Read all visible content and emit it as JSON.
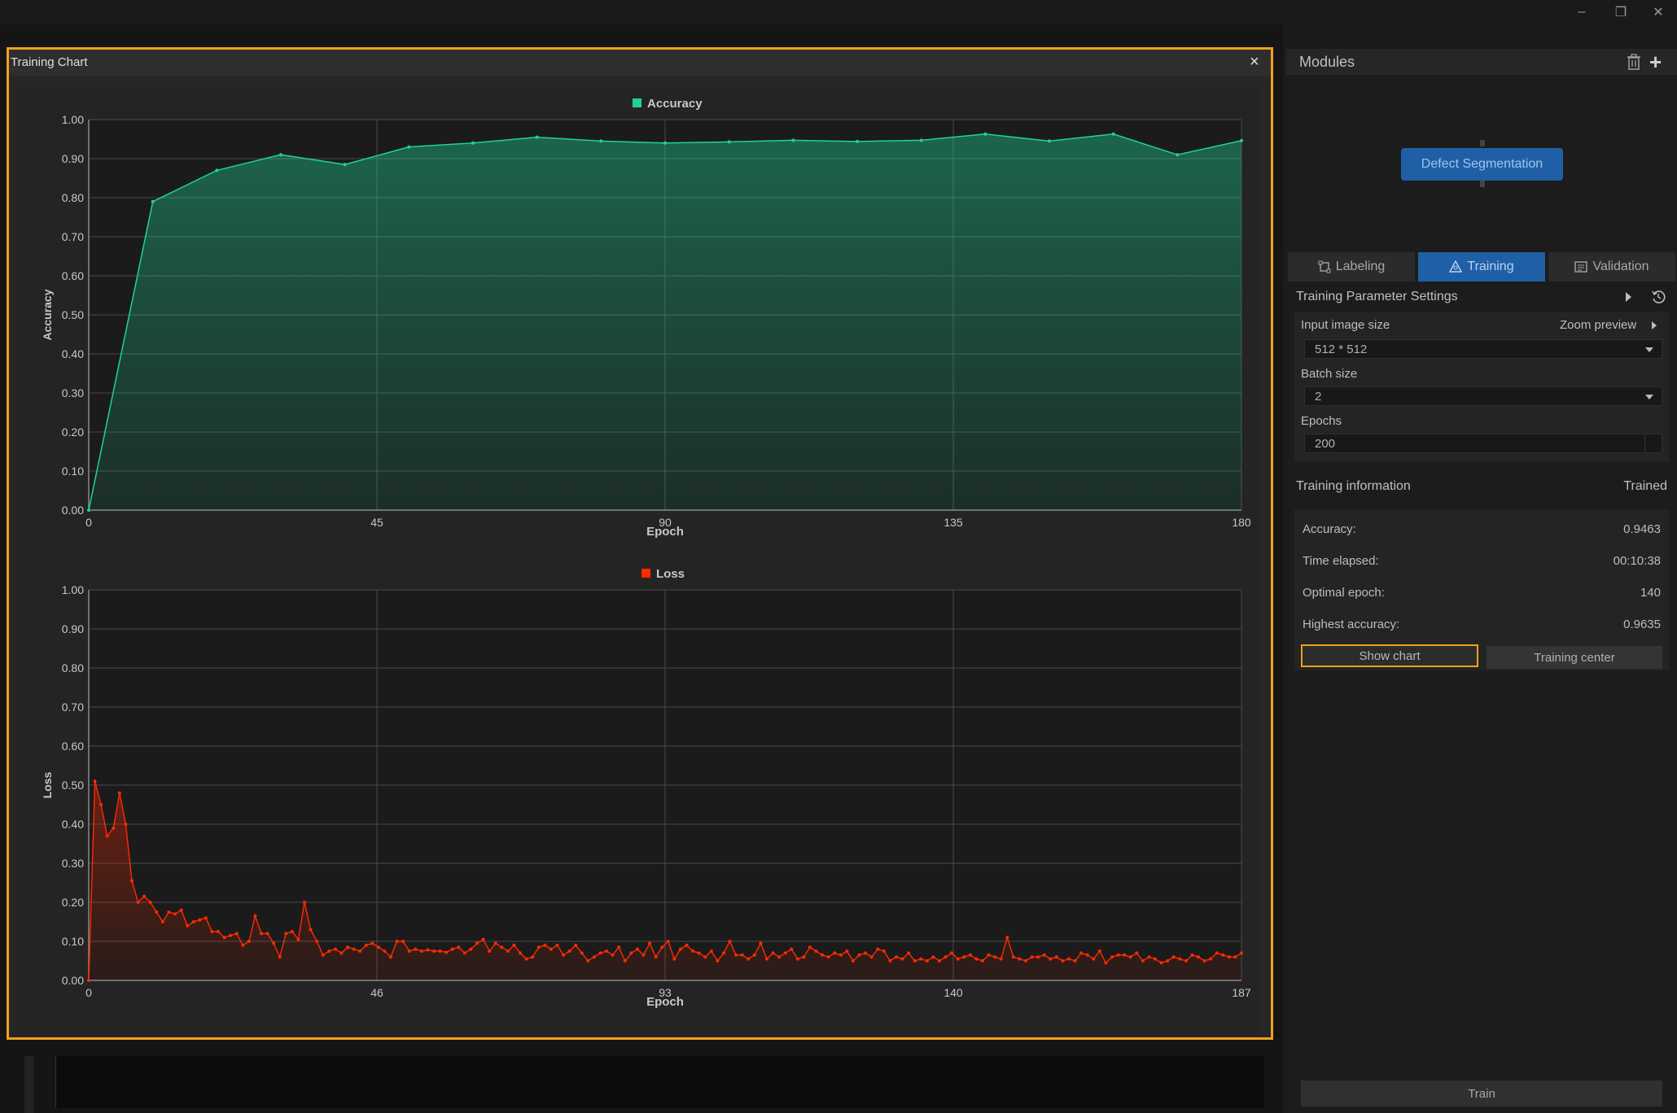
{
  "window": {
    "minimize_label": "–",
    "restore_label": "❐",
    "close_label": "✕"
  },
  "dialog": {
    "title": "Training Chart",
    "close_label": "×"
  },
  "colors": {
    "accent": "#f0a020",
    "accuracy": "#1fd396",
    "loss": "#ff2a00",
    "active_tab": "#1f5fa6"
  },
  "chart_data": [
    {
      "type": "area",
      "series_name": "Accuracy",
      "ylabel": "Accuracy",
      "xlabel": "Epoch",
      "xlim": [
        0,
        180
      ],
      "ylim": [
        0,
        1
      ],
      "xticks": [
        "0",
        "45",
        "90",
        "135",
        "180"
      ],
      "yticks": [
        "0.00",
        "0.10",
        "0.20",
        "0.30",
        "0.40",
        "0.50",
        "0.60",
        "0.70",
        "0.80",
        "0.90",
        "1.00"
      ],
      "grid": true,
      "legend": "top-center",
      "x": [
        0,
        10,
        20,
        30,
        40,
        50,
        60,
        70,
        80,
        90,
        100,
        110,
        120,
        130,
        140,
        150,
        160,
        170,
        180
      ],
      "values": [
        0.0,
        0.79,
        0.87,
        0.91,
        0.885,
        0.93,
        0.94,
        0.955,
        0.945,
        0.94,
        0.943,
        0.947,
        0.944,
        0.947,
        0.963,
        0.945,
        0.963,
        0.91,
        0.946
      ]
    },
    {
      "type": "area",
      "series_name": "Loss",
      "ylabel": "Loss",
      "xlabel": "Epoch",
      "xlim": [
        0,
        187
      ],
      "ylim": [
        0,
        1
      ],
      "xticks": [
        "0",
        "46",
        "93",
        "140",
        "187"
      ],
      "yticks": [
        "0.00",
        "0.10",
        "0.20",
        "0.30",
        "0.40",
        "0.50",
        "0.60",
        "0.70",
        "0.80",
        "0.90",
        "1.00"
      ],
      "grid": true,
      "legend": "top-center",
      "x": [
        0,
        1,
        2,
        3,
        4,
        5,
        6,
        7,
        8,
        9,
        10,
        11,
        12,
        13,
        14,
        15,
        16,
        17,
        18,
        19,
        20,
        21,
        22,
        23,
        24,
        25,
        26,
        27,
        28,
        29,
        30,
        31,
        32,
        33,
        34,
        35,
        36,
        37,
        38,
        39,
        40,
        41,
        42,
        43,
        44,
        45,
        46,
        47,
        48,
        49,
        50,
        51,
        52,
        53,
        54,
        55,
        56,
        57,
        58,
        59,
        60,
        61,
        62,
        63,
        64,
        65,
        66,
        67,
        68,
        69,
        70,
        71,
        72,
        73,
        74,
        75,
        76,
        77,
        78,
        79,
        80,
        81,
        82,
        83,
        84,
        85,
        86,
        87,
        88,
        89,
        90,
        91,
        92,
        93,
        94,
        95,
        96,
        97,
        98,
        99,
        100,
        101,
        102,
        103,
        104,
        105,
        106,
        107,
        108,
        109,
        110,
        111,
        112,
        113,
        114,
        115,
        116,
        117,
        118,
        119,
        120,
        121,
        122,
        123,
        124,
        125,
        126,
        127,
        128,
        129,
        130,
        131,
        132,
        133,
        134,
        135,
        136,
        137,
        138,
        139,
        140,
        141,
        142,
        143,
        144,
        145,
        146,
        147,
        148,
        149,
        150,
        151,
        152,
        153,
        154,
        155,
        156,
        157,
        158,
        159,
        160,
        161,
        162,
        163,
        164,
        165,
        166,
        167,
        168,
        169,
        170,
        171,
        172,
        173,
        174,
        175,
        176,
        177,
        178,
        179,
        180,
        181,
        182,
        183,
        184,
        185,
        186,
        187
      ],
      "values": [
        0.0,
        0.51,
        0.45,
        0.37,
        0.39,
        0.48,
        0.4,
        0.255,
        0.2,
        0.215,
        0.2,
        0.175,
        0.15,
        0.175,
        0.17,
        0.18,
        0.14,
        0.15,
        0.155,
        0.16,
        0.125,
        0.125,
        0.11,
        0.115,
        0.12,
        0.09,
        0.1,
        0.165,
        0.12,
        0.12,
        0.095,
        0.06,
        0.12,
        0.125,
        0.105,
        0.2,
        0.13,
        0.1,
        0.065,
        0.075,
        0.08,
        0.07,
        0.085,
        0.08,
        0.075,
        0.09,
        0.095,
        0.085,
        0.075,
        0.06,
        0.1,
        0.1,
        0.075,
        0.08,
        0.075,
        0.078,
        0.075,
        0.075,
        0.072,
        0.08,
        0.085,
        0.07,
        0.08,
        0.095,
        0.105,
        0.075,
        0.095,
        0.085,
        0.075,
        0.09,
        0.07,
        0.055,
        0.06,
        0.085,
        0.09,
        0.08,
        0.09,
        0.065,
        0.075,
        0.09,
        0.07,
        0.05,
        0.06,
        0.07,
        0.075,
        0.065,
        0.085,
        0.05,
        0.07,
        0.08,
        0.065,
        0.095,
        0.06,
        0.085,
        0.1,
        0.055,
        0.08,
        0.09,
        0.075,
        0.07,
        0.06,
        0.075,
        0.05,
        0.07,
        0.1,
        0.065,
        0.065,
        0.055,
        0.065,
        0.095,
        0.055,
        0.07,
        0.06,
        0.07,
        0.08,
        0.055,
        0.06,
        0.085,
        0.075,
        0.065,
        0.06,
        0.07,
        0.065,
        0.075,
        0.05,
        0.065,
        0.07,
        0.06,
        0.08,
        0.075,
        0.05,
        0.06,
        0.055,
        0.07,
        0.05,
        0.055,
        0.05,
        0.06,
        0.05,
        0.06,
        0.07,
        0.055,
        0.06,
        0.065,
        0.055,
        0.05,
        0.065,
        0.06,
        0.055,
        0.11,
        0.06,
        0.055,
        0.05,
        0.06,
        0.06,
        0.065,
        0.055,
        0.06,
        0.05,
        0.055,
        0.05,
        0.07,
        0.065,
        0.055,
        0.075,
        0.045,
        0.06,
        0.065,
        0.065,
        0.06,
        0.07,
        0.05,
        0.06,
        0.055,
        0.045,
        0.05,
        0.06,
        0.055,
        0.05,
        0.065,
        0.06,
        0.05,
        0.055,
        0.07,
        0.065,
        0.06,
        0.06,
        0.07
      ]
    }
  ],
  "right_panel": {
    "modules_title": "Modules",
    "module_node": "Defect Segmentation",
    "tabs": [
      {
        "label": "Labeling"
      },
      {
        "label": "Training"
      },
      {
        "label": "Validation"
      }
    ],
    "params_title": "Training Parameter Settings",
    "input_size_label": "Input image size",
    "zoom_preview_label": "Zoom preview",
    "input_size_value": "512 * 512",
    "batch_label": "Batch size",
    "batch_value": "2",
    "epochs_label": "Epochs",
    "epochs_value": "200",
    "info_title": "Training information",
    "info_status": "Trained",
    "info": [
      {
        "label": "Accuracy:",
        "value": "0.9463"
      },
      {
        "label": "Time elapsed:",
        "value": "00:10:38"
      },
      {
        "label": "Optimal epoch:",
        "value": "140"
      },
      {
        "label": "Highest accuracy:",
        "value": "0.9635"
      }
    ],
    "show_chart_label": "Show chart",
    "training_center_label": "Training center",
    "train_label": "Train"
  }
}
